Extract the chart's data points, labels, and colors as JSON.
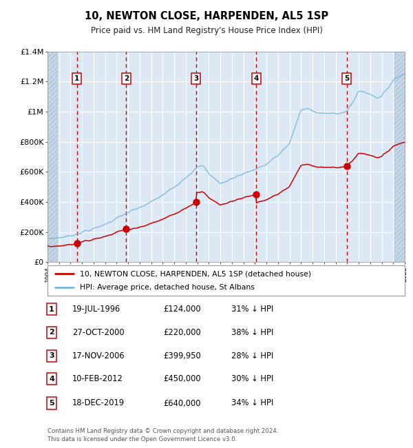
{
  "title": "10, NEWTON CLOSE, HARPENDEN, AL5 1SP",
  "subtitle": "Price paid vs. HM Land Registry's House Price Index (HPI)",
  "footer": "Contains HM Land Registry data © Crown copyright and database right 2024.\nThis data is licensed under the Open Government Licence v3.0.",
  "legend_red": "10, NEWTON CLOSE, HARPENDEN, AL5 1SP (detached house)",
  "legend_blue": "HPI: Average price, detached house, St Albans",
  "sales": [
    {
      "num": 1,
      "date": "19-JUL-1996",
      "price": 124000,
      "pct": "31% ↓ HPI",
      "year": 1996.54
    },
    {
      "num": 2,
      "date": "27-OCT-2000",
      "price": 220000,
      "pct": "38% ↓ HPI",
      "year": 2000.83
    },
    {
      "num": 3,
      "date": "17-NOV-2006",
      "price": 399950,
      "pct": "28% ↓ HPI",
      "year": 2006.88
    },
    {
      "num": 4,
      "date": "10-FEB-2012",
      "price": 450000,
      "pct": "30% ↓ HPI",
      "year": 2012.12
    },
    {
      "num": 5,
      "date": "18-DEC-2019",
      "price": 640000,
      "pct": "34% ↓ HPI",
      "year": 2019.96
    }
  ],
  "xmin": 1994,
  "xmax": 2025,
  "ymin": 0,
  "ymax": 1400000,
  "yticks": [
    0,
    200000,
    400000,
    600000,
    800000,
    1000000,
    1200000,
    1400000
  ],
  "ytick_labels": [
    "£0",
    "£200K",
    "£400K",
    "£600K",
    "£800K",
    "£1M",
    "£1.2M",
    "£1.4M"
  ],
  "background_color": "#dce9f5",
  "grid_color": "#ffffff",
  "red_color": "#cc0000",
  "blue_color": "#7ab8d9",
  "vline_color": "#cc0000",
  "hpi_key_years": [
    1994,
    1995,
    1996,
    1997,
    1998,
    1999,
    2000,
    2001,
    2002,
    2003,
    2004,
    2005,
    2006,
    2007,
    2007.5,
    2008,
    2009,
    2010,
    2011,
    2012,
    2013,
    2014,
    2015,
    2016,
    2016.5,
    2017,
    2018,
    2019,
    2019.5,
    2020,
    2020.5,
    2021,
    2022,
    2022.5,
    2023,
    2024,
    2025
  ],
  "hpi_key_vals": [
    155000,
    162000,
    175000,
    200000,
    220000,
    252000,
    290000,
    330000,
    360000,
    400000,
    445000,
    500000,
    565000,
    630000,
    640000,
    590000,
    520000,
    555000,
    590000,
    615000,
    650000,
    710000,
    790000,
    1010000,
    1020000,
    1005000,
    990000,
    985000,
    990000,
    1010000,
    1060000,
    1140000,
    1120000,
    1095000,
    1100000,
    1210000,
    1260000
  ]
}
